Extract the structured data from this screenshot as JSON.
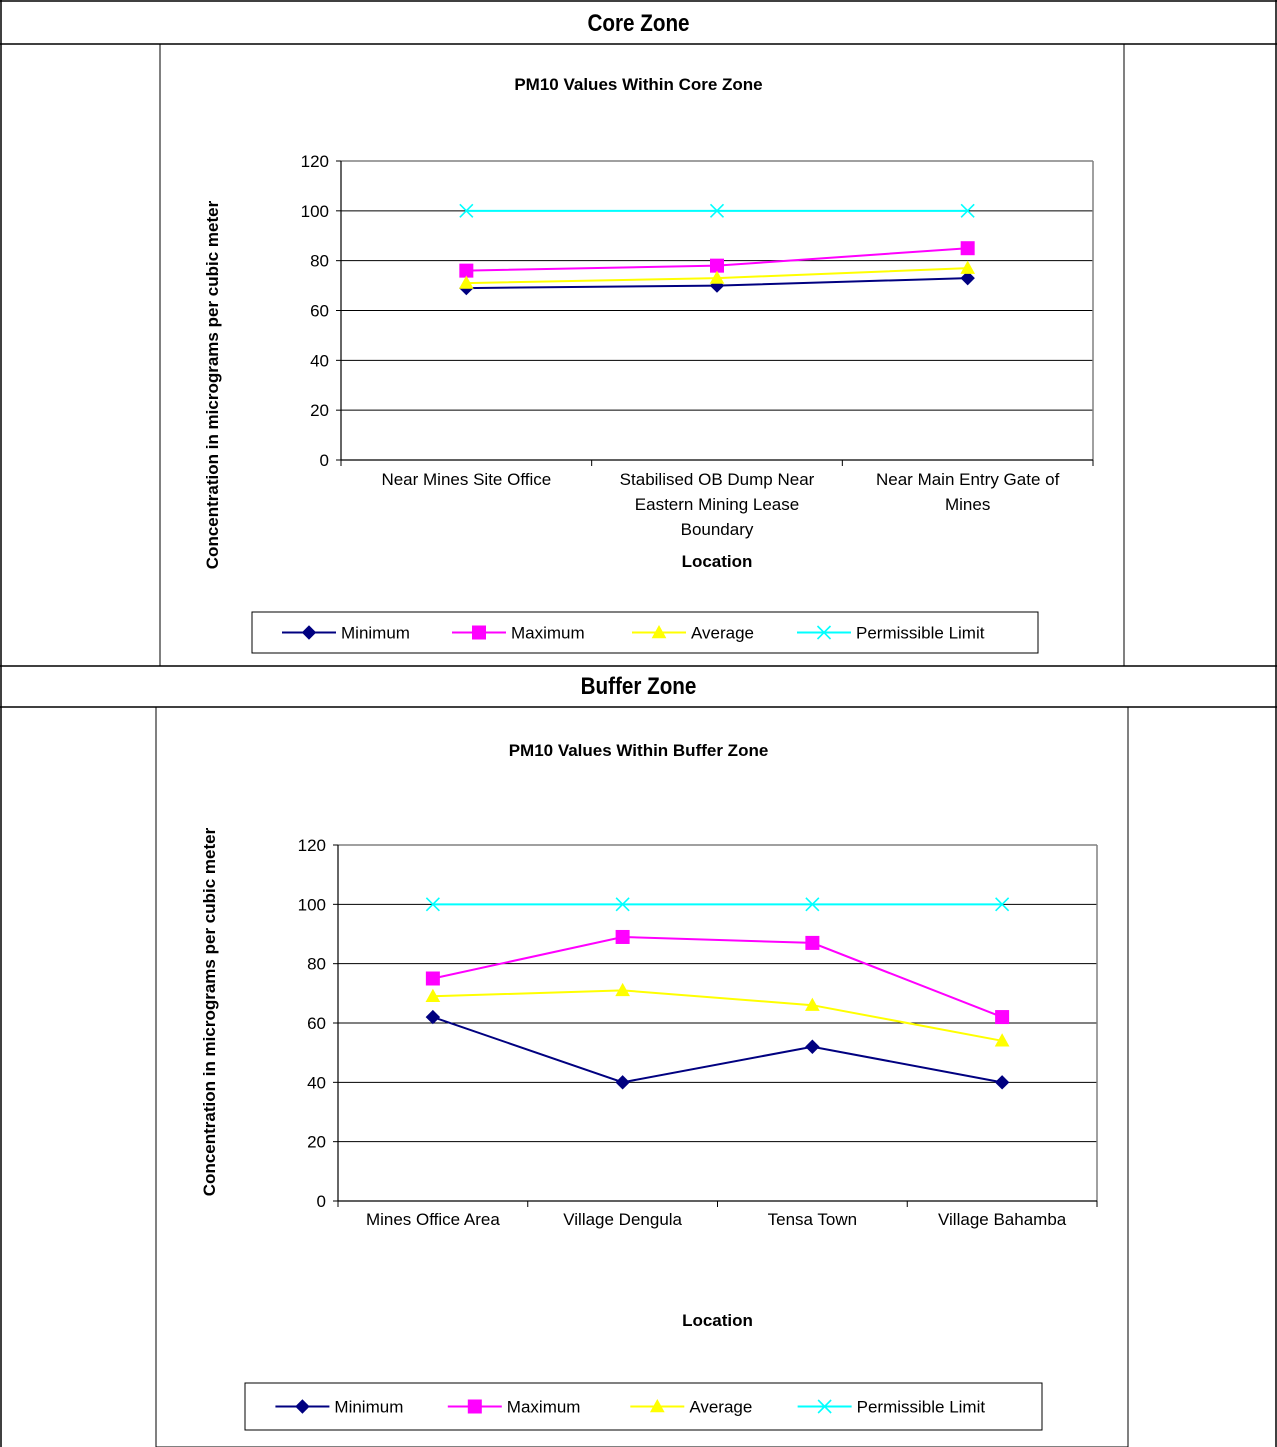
{
  "sections": [
    {
      "heading": "Core Zone",
      "chart_title": "PM10 Values Within Core Zone"
    },
    {
      "heading": "Buffer Zone",
      "chart_title": "PM10 Values Within Buffer Zone"
    }
  ],
  "chart_data": [
    {
      "type": "line",
      "title": "PM10 Values Within Core Zone",
      "xlabel": "Location",
      "ylabel": "Concentration in micrograms per cubic meter",
      "categories": [
        [
          "Near Mines Site Office"
        ],
        [
          "Stabilised OB Dump Near",
          "Eastern Mining Lease",
          "Boundary"
        ],
        [
          "Near Main Entry Gate of",
          "Mines"
        ]
      ],
      "ylim": [
        0,
        120
      ],
      "yticks": [
        0,
        20,
        40,
        60,
        80,
        100,
        120
      ],
      "grid": "horizontal",
      "legend": "bottom",
      "series": [
        {
          "name": "Minimum",
          "values": [
            69,
            70,
            73
          ],
          "color": "#000080",
          "marker": "diamond"
        },
        {
          "name": "Maximum",
          "values": [
            76,
            78,
            85
          ],
          "color": "#ff00ff",
          "marker": "square"
        },
        {
          "name": "Average",
          "values": [
            71,
            73,
            77
          ],
          "color": "#ffff00",
          "marker": "triangle"
        },
        {
          "name": "Permissible Limit",
          "values": [
            100,
            100,
            100
          ],
          "color": "#00ffff",
          "marker": "x"
        }
      ]
    },
    {
      "type": "line",
      "title": "PM10 Values Within Buffer Zone",
      "xlabel": "Location",
      "ylabel": "Concentration in micrograms per cubic meter",
      "categories": [
        [
          "Mines Office Area"
        ],
        [
          "Village Dengula"
        ],
        [
          "Tensa Town"
        ],
        [
          "Village Bahamba"
        ]
      ],
      "ylim": [
        0,
        120
      ],
      "yticks": [
        0,
        20,
        40,
        60,
        80,
        100,
        120
      ],
      "grid": "horizontal",
      "legend": "bottom",
      "series": [
        {
          "name": "Minimum",
          "values": [
            62,
            40,
            52,
            40
          ],
          "color": "#000080",
          "marker": "diamond"
        },
        {
          "name": "Maximum",
          "values": [
            75,
            89,
            87,
            62
          ],
          "color": "#ff00ff",
          "marker": "square"
        },
        {
          "name": "Average",
          "values": [
            69,
            71,
            66,
            54
          ],
          "color": "#ffff00",
          "marker": "triangle"
        },
        {
          "name": "Permissible Limit",
          "values": [
            100,
            100,
            100,
            100
          ],
          "color": "#00ffff",
          "marker": "x"
        }
      ]
    }
  ]
}
